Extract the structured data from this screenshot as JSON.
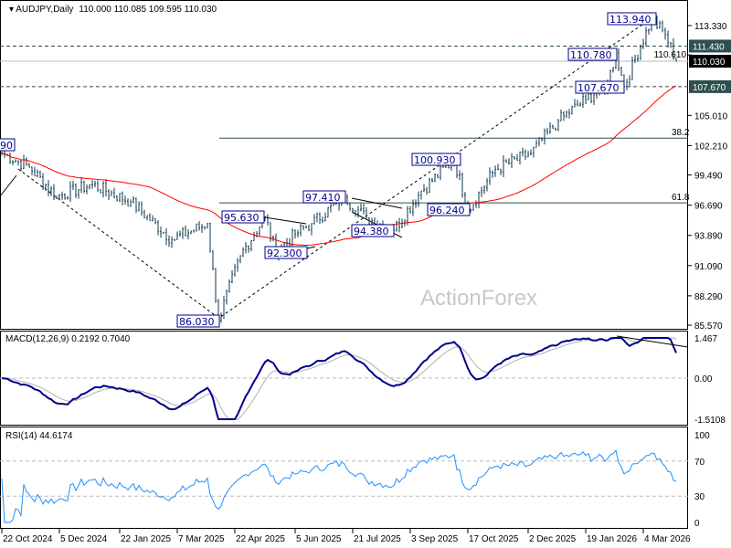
{
  "header": {
    "symbol": "AUDJPY,Daily",
    "ohlc": "110.000 110.085 109.595 110.030"
  },
  "watermark": "ActionForex",
  "colors": {
    "bars": "#0f3a4f",
    "ma": "#ff0000",
    "macd": "#00008b",
    "signal": "#b0b0b0",
    "rsi": "#1e90ff",
    "label_box": "#00008b"
  },
  "chart_data": {
    "type": "ohlc",
    "title": "AUDJPY, Daily",
    "price_axis": {
      "ticks": [
        "113.330",
        "110.610",
        "105.010",
        "102.210",
        "99.490",
        "96.690",
        "93.890",
        "91.090",
        "88.290",
        "85.570"
      ],
      "ylim": [
        85.57,
        115.5
      ]
    },
    "price_markers": [
      {
        "value": 111.43,
        "text": "111.430"
      },
      {
        "value": 110.03,
        "text": "110.030"
      },
      {
        "value": 107.67,
        "text": "107.670"
      }
    ],
    "x_labels": [
      "22 Oct 2024",
      "5 Dec 2024",
      "22 Jan 2025",
      "7 Mar 2025",
      "22 Apr 2025",
      "5 Jun 2025",
      "21 Jul 2025",
      "3 Sep 2025",
      "17 Oct 2025",
      "2 Dec 2025",
      "19 Jan 2026",
      "4 Mar 2026"
    ],
    "bars_per_label": 21.3,
    "path_anchors_bar_index_price": [
      [
        0,
        101.5
      ],
      [
        10,
        100.2
      ],
      [
        20,
        97.5
      ],
      [
        33,
        98.6
      ],
      [
        47,
        97
      ],
      [
        62,
        93.5
      ],
      [
        75,
        95
      ],
      [
        79,
        86.03
      ],
      [
        87,
        92
      ],
      [
        96,
        95.63
      ],
      [
        100,
        92.3
      ],
      [
        107,
        94
      ],
      [
        113,
        95
      ],
      [
        125,
        97.41
      ],
      [
        133,
        95.5
      ],
      [
        143,
        94.38
      ],
      [
        153,
        98
      ],
      [
        165,
        100.93
      ],
      [
        170,
        96.24
      ],
      [
        180,
        100
      ],
      [
        193,
        101.5
      ],
      [
        203,
        104.5
      ],
      [
        213,
        106.5
      ],
      [
        221,
        108
      ],
      [
        224,
        110.78
      ],
      [
        227,
        107.67
      ],
      [
        237,
        113.94
      ],
      [
        242,
        112.5
      ],
      [
        246,
        110.03
      ]
    ],
    "annotations": [
      {
        "text": "113.940",
        "price": 113.94
      },
      {
        "text": "110.780",
        "price": 110.78
      },
      {
        "text": "107.670",
        "price": 107.67
      },
      {
        "text": "100.930",
        "price": 100.93
      },
      {
        "text": "96.240",
        "price": 96.24
      },
      {
        "text": "97.410",
        "price": 97.41
      },
      {
        "text": "95.630",
        "price": 95.63
      },
      {
        "text": "94.380",
        "price": 94.38
      },
      {
        "text": "92.300",
        "price": 92.3
      },
      {
        "text": "86.030",
        "price": 86.03
      },
      {
        "text": "90",
        "price": 102.5
      }
    ],
    "fib_levels": [
      {
        "text": "38.2",
        "price": 102.9
      },
      {
        "text": "61.8",
        "price": 96.9
      }
    ],
    "ma_period": 55,
    "macd": {
      "label": "MACD(12,26,9) 0.2192 0.7040",
      "ticks": [
        "1.467",
        "0.00",
        "-1.5108"
      ],
      "range": [
        -1.5108,
        1.467
      ]
    },
    "rsi": {
      "label": "RSI(14) 44.6174",
      "ticks": [
        "100",
        "70",
        "30",
        "0"
      ]
    }
  }
}
